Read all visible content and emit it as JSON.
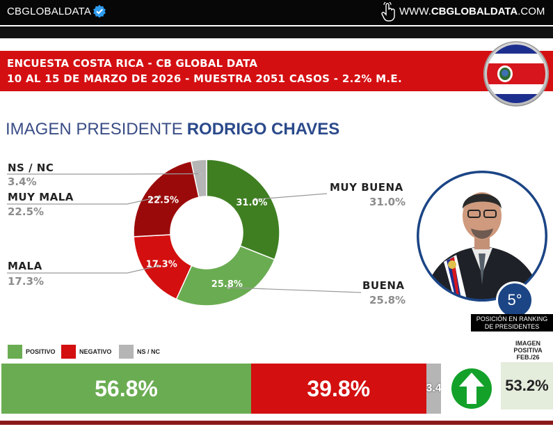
{
  "topbar": {
    "brand": "CBGLOBALDATA",
    "site_prefix": "WWW.",
    "site_bold": "CBGLOBALDATA",
    "site_suffix": ".COM"
  },
  "header": {
    "line1": "ENCUESTA COSTA RICA - CB GLOBAL DATA",
    "line2": "10 AL 15 DE MARZO DE 2026 - MUESTRA 2051 CASOS - 2.2% M.E."
  },
  "title": {
    "light": "IMAGEN PRESIDENTE",
    "bold": "RODRIGO CHAVES"
  },
  "ranking": {
    "position": "5°",
    "caption_l1": "POSICIÓN EN RANKING",
    "caption_l2": "DE PRESIDENTES"
  },
  "legend": [
    {
      "label": "POSITIVO",
      "color": "#6aac52"
    },
    {
      "label": "NEGATIVO",
      "color": "#d30f0f"
    },
    {
      "label": "NS / NC",
      "color": "#b5b5b5"
    }
  ],
  "image_positive": {
    "label_l1": "IMAGEN",
    "label_l2": "POSITIVA",
    "label_l3": "FEB./26",
    "value": "53.2%"
  },
  "colors": {
    "red": "#d40f12",
    "dark_red": "#9b0a0a",
    "dark_green": "#3f7f22",
    "light_green": "#6aac52",
    "gray": "#b5b5b5",
    "navy": "#2b4a8b"
  },
  "chart_data": [
    {
      "type": "pie",
      "subtype": "donut",
      "categories": [
        "MUY BUENA",
        "BUENA",
        "MALA",
        "MUY MALA",
        "NS / NC"
      ],
      "values": [
        31.0,
        25.8,
        17.3,
        22.5,
        3.4
      ],
      "labels": [
        "31.0%",
        "25.8%",
        "17.3%",
        "22.5%",
        "3.4%"
      ],
      "slice_labels": [
        "31.0%",
        "25.8%",
        "17.3%",
        "22.5%",
        ""
      ],
      "colors": [
        "#3f7f22",
        "#6aac52",
        "#d30f0f",
        "#9b0a0a",
        "#b5b5b5"
      ]
    },
    {
      "type": "bar",
      "subtype": "stacked-horizontal",
      "categories": [
        "POSITIVO",
        "NEGATIVO",
        "NS / NC"
      ],
      "values": [
        56.8,
        39.8,
        3.4
      ],
      "labels": [
        "56.8%",
        "39.8%",
        "3.4%"
      ],
      "colors": [
        "#6aac52",
        "#d30f0f",
        "#b5b5b5"
      ]
    }
  ]
}
